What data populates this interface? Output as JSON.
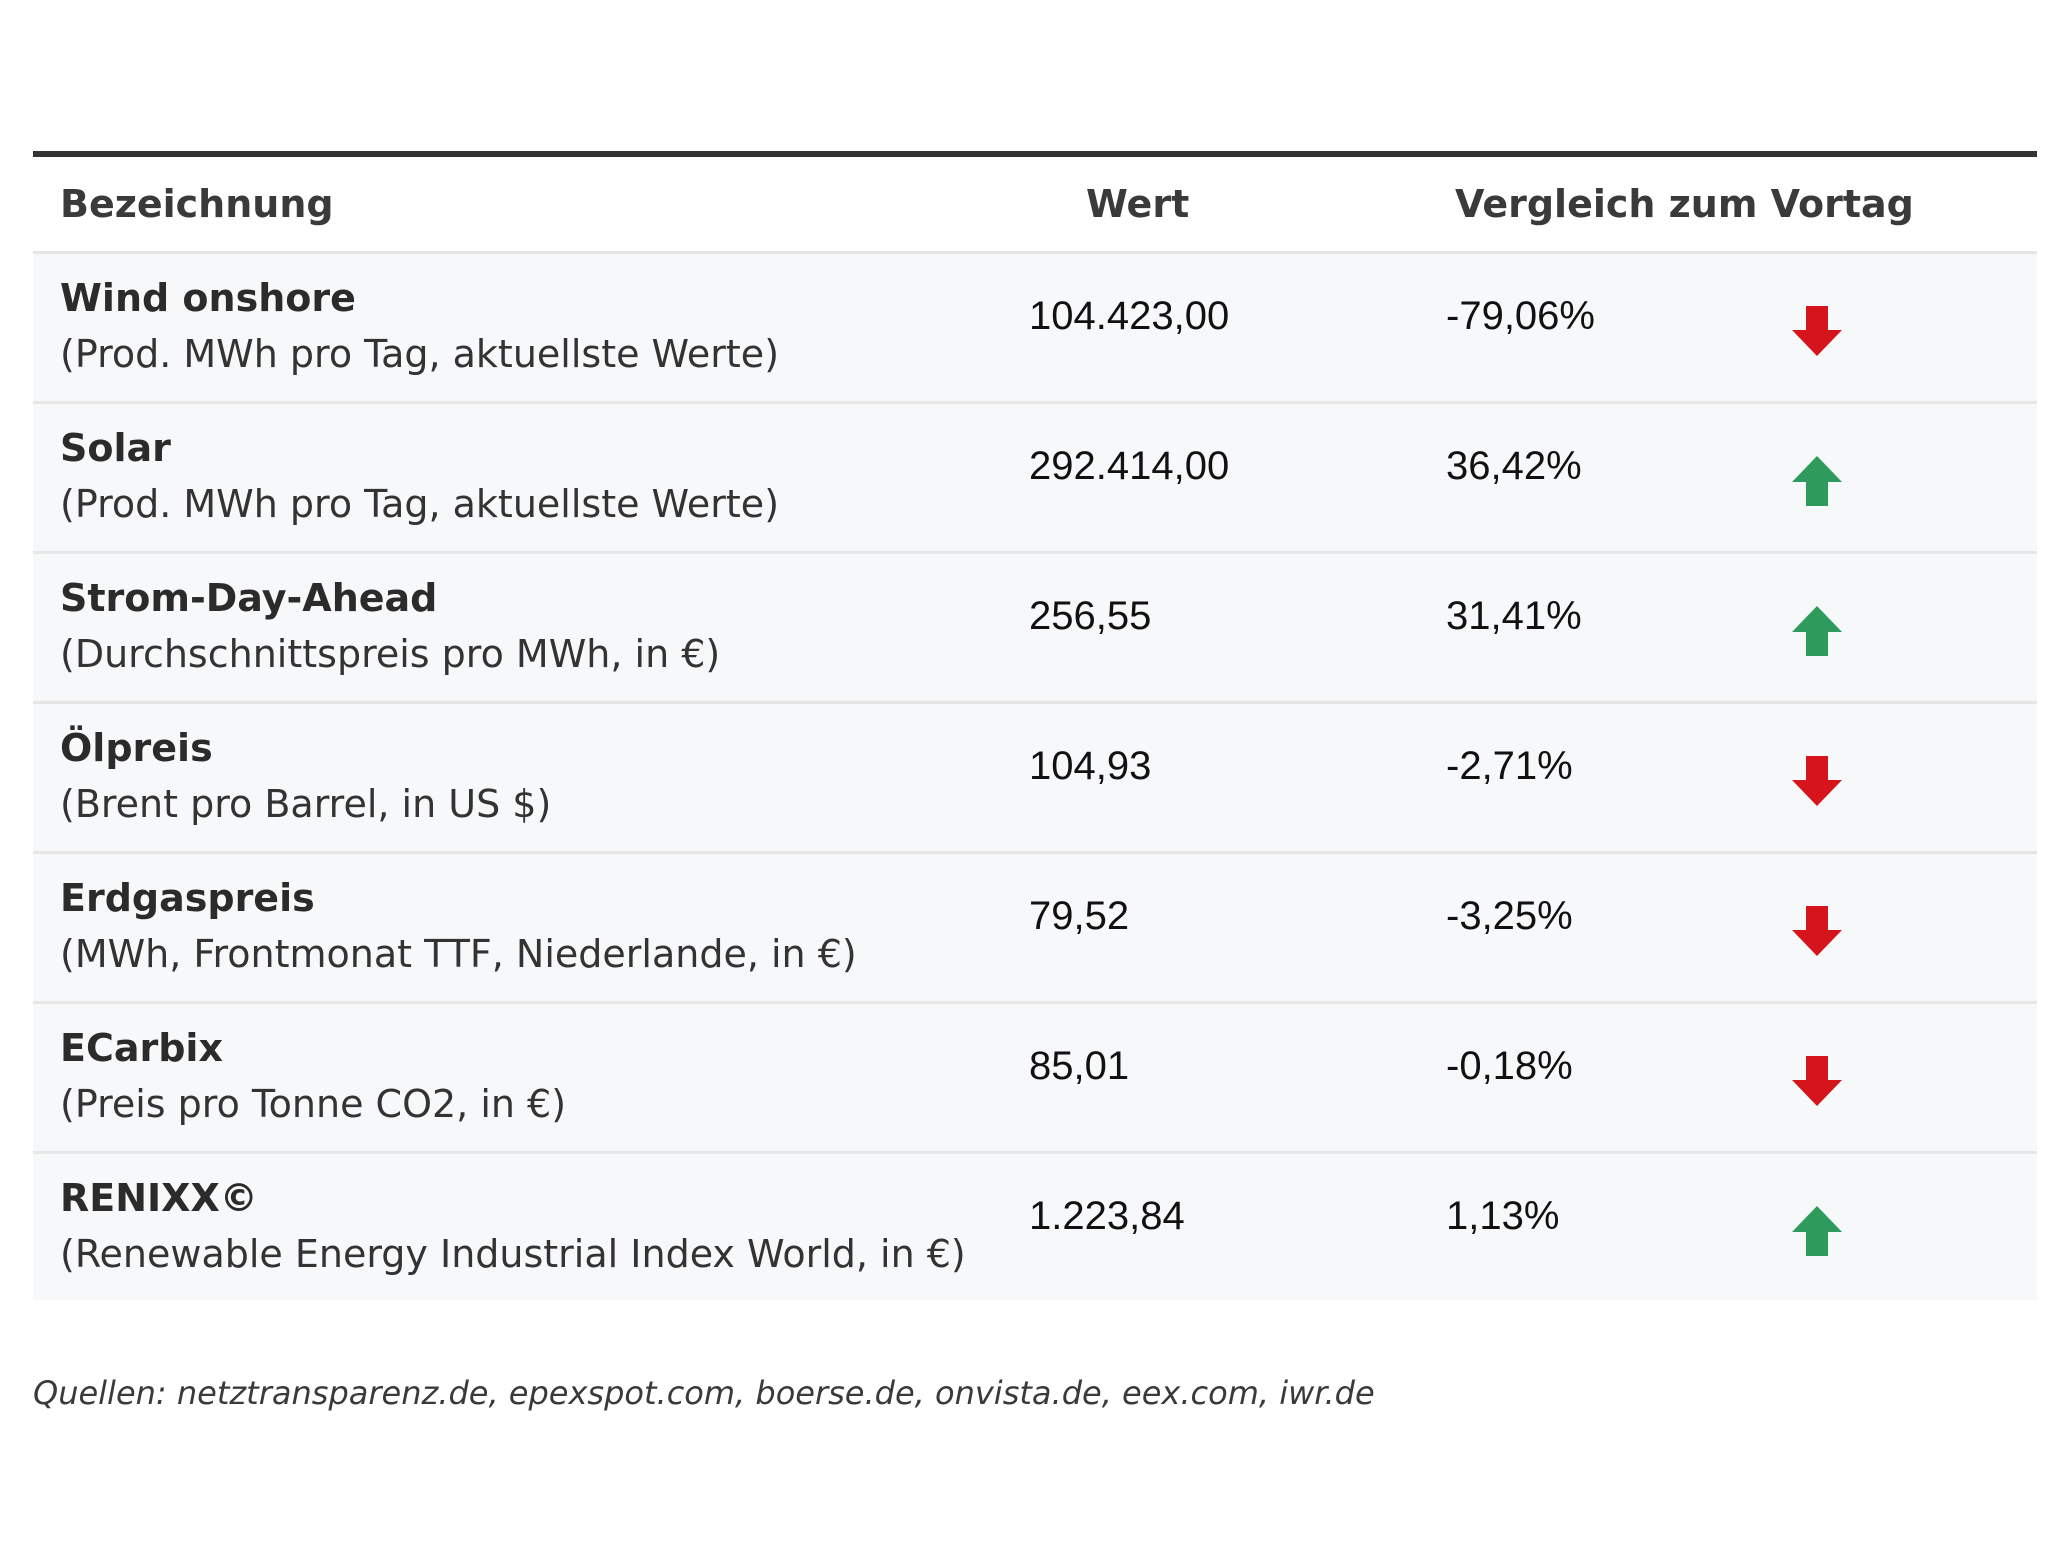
{
  "table": {
    "headers": {
      "name": "Bezeichnung",
      "value": "Wert",
      "comparison": "Vergleich zum Vortag"
    },
    "rows": [
      {
        "name": "Wind onshore",
        "sub": "(Prod. MWh pro Tag, aktuellste Werte)",
        "value": "104.423,00",
        "change": "-79,06%",
        "direction": "down"
      },
      {
        "name": "Solar",
        "sub": "(Prod. MWh pro Tag, aktuellste Werte)",
        "value": "292.414,00",
        "change": "36,42%",
        "direction": "up"
      },
      {
        "name": "Strom-Day-Ahead",
        "sub": "(Durchschnittspreis pro MWh, in €)",
        "value": "256,55",
        "change": "31,41%",
        "direction": "up"
      },
      {
        "name": "Ölpreis",
        "sub": "(Brent pro Barrel, in US $)",
        "value": "104,93",
        "change": "-2,71%",
        "direction": "down"
      },
      {
        "name": "Erdgaspreis",
        "sub": "(MWh, Frontmonat TTF, Niederlande, in €)",
        "value": "79,52",
        "change": "-3,25%",
        "direction": "down"
      },
      {
        "name": "ECarbix",
        "sub": "(Preis pro Tonne CO2, in €)",
        "value": "85,01",
        "change": "-0,18%",
        "direction": "down"
      },
      {
        "name": "RENIXX©",
        "sub": "(Renewable Energy Industrial Index World, in €)",
        "value": "1.223,84",
        "change": "1,13%",
        "direction": "up"
      }
    ]
  },
  "colors": {
    "up": "#2e9a5c",
    "down": "#d6141b"
  },
  "source": "Quellen: netztransparenz.de, epexspot.com, boerse.de, onvista.de, eex.com, iwr.de"
}
